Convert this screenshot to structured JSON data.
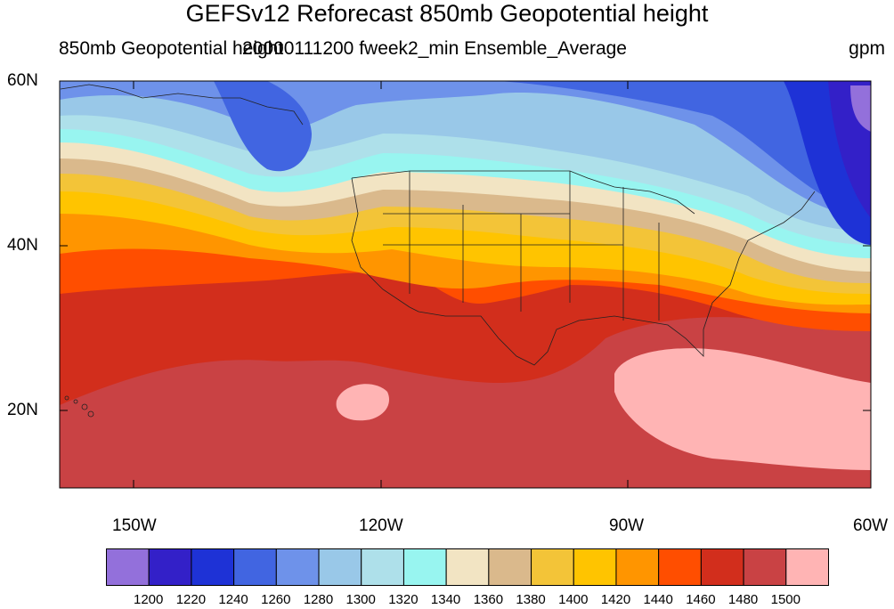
{
  "title": "GEFSv12 Reforecast 850mb Geopotential height",
  "subtitle_left": "850mb Geopotential height",
  "subtitle_center": "20000111200 fweek2_min Ensemble_Average",
  "subtitle_right": "gpm",
  "lat_labels": [
    "60N",
    "40N",
    "20N"
  ],
  "lon_labels": [
    "150W",
    "120W",
    "90W",
    "60W"
  ],
  "colorbar": {
    "colors": [
      "#9370DB",
      "#3320C8",
      "#1E32D6",
      "#4165E1",
      "#6E92EA",
      "#99C8E8",
      "#AEE0EA",
      "#98F5F0",
      "#F2E4C3",
      "#DAB98C",
      "#F3C438",
      "#FFC400",
      "#FF9500",
      "#FF4E00",
      "#D22E1C",
      "#C94244",
      "#FFB4B4"
    ],
    "labels": [
      "1200",
      "1220",
      "1240",
      "1260",
      "1280",
      "1300",
      "1320",
      "1340",
      "1360",
      "1380",
      "1400",
      "1420",
      "1440",
      "1460",
      "1480",
      "1500"
    ]
  }
}
